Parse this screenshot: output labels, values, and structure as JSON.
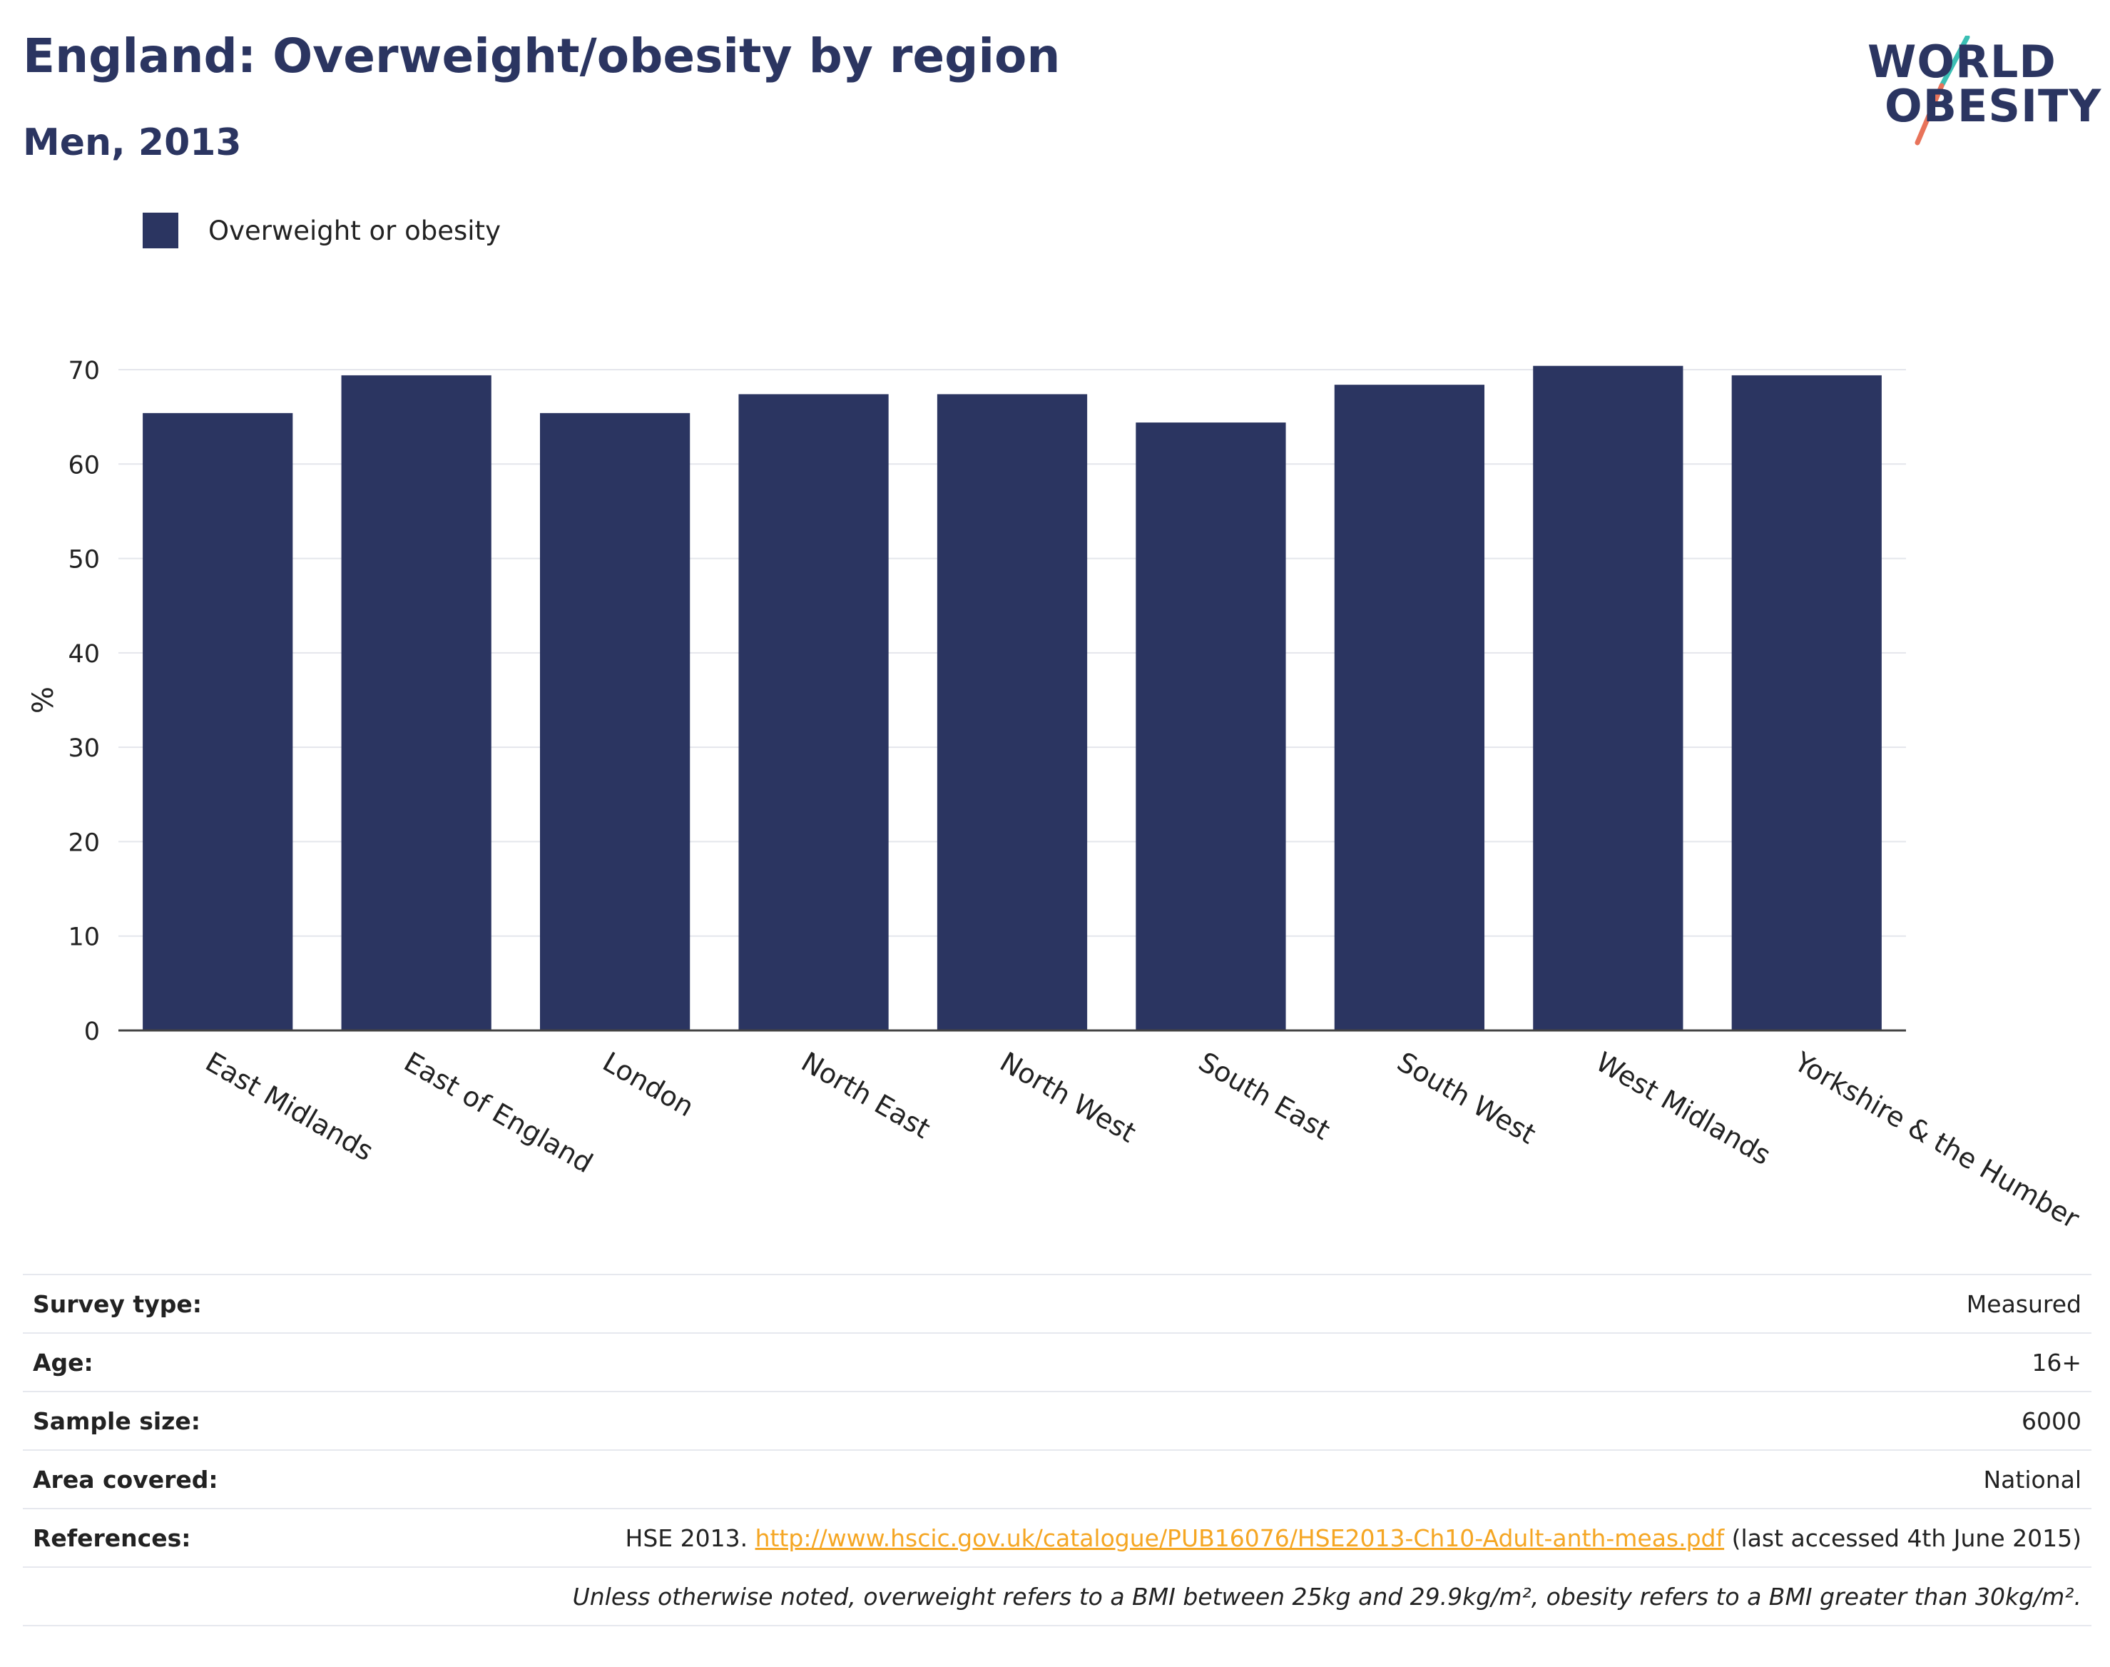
{
  "title": "England: Overweight/obesity by region",
  "subtitle": "Men, 2013",
  "logo": {
    "line1": "WORLD",
    "line2": "OBESITY",
    "accent_colors": [
      "#3bbfb4",
      "#e8735a"
    ]
  },
  "legend": {
    "label": "Overweight or obesity",
    "color": "#2b3561"
  },
  "chart_data": {
    "type": "bar",
    "categories": [
      "East Midlands",
      "East of England",
      "London",
      "North East",
      "North West",
      "South East",
      "South West",
      "West Midlands",
      "Yorkshire & the Humber"
    ],
    "series": [
      {
        "name": "Overweight or obesity",
        "values": [
          65.4,
          69.4,
          65.4,
          67.4,
          67.4,
          64.4,
          68.4,
          70.4,
          69.4
        ],
        "color": "#2b3561"
      }
    ],
    "ylabel": "%",
    "xlabel": "",
    "ylim": [
      0,
      70
    ],
    "yticks": [
      0,
      10,
      20,
      30,
      40,
      50,
      60,
      70
    ],
    "grid": true,
    "legend_position": "top-left"
  },
  "info": {
    "survey_type": {
      "label": "Survey type:",
      "value": "Measured"
    },
    "age": {
      "label": "Age:",
      "value": "16+"
    },
    "sample_size": {
      "label": "Sample size:",
      "value": "6000"
    },
    "area_covered": {
      "label": "Area covered:",
      "value": "National"
    },
    "references": {
      "label": "References:",
      "prefix": "HSE 2013. ",
      "link": "http://www.hscic.gov.uk/catalogue/PUB16076/HSE2013-Ch10-Adult-anth-meas.pdf",
      "suffix": " (last accessed 4th June 2015)"
    },
    "note": "Unless otherwise noted, overweight refers to a BMI between 25kg and 29.9kg/m², obesity refers to a BMI greater than 30kg/m²."
  }
}
